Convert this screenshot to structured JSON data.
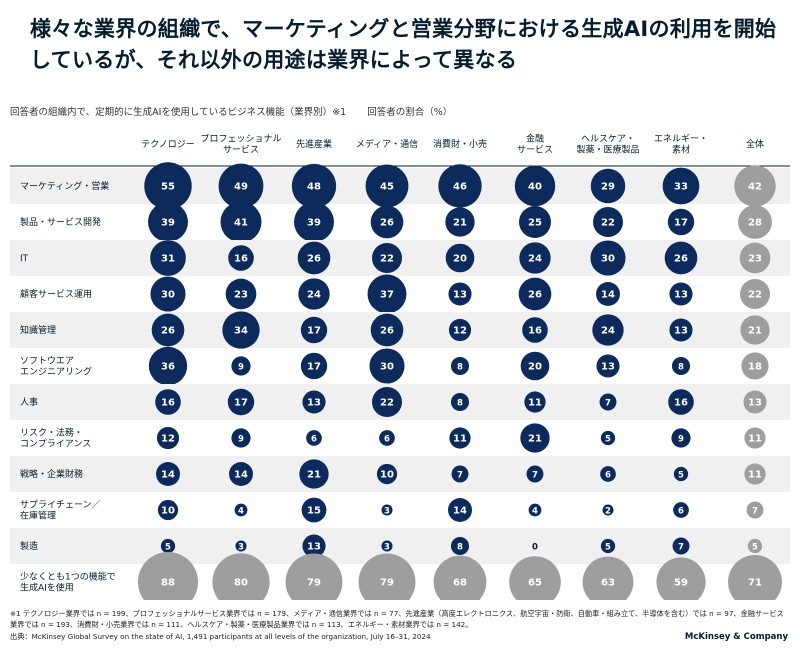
{
  "title": "様々な業界の組織で、マーケティングと営業分野における生成AIの利用を開始しているが、それ以外の用途は業界によって異なる",
  "subtitle_left": "回答者の組織内で、定期的に生成AIを使用しているビジネス機能（業界別）※1",
  "subtitle_right": "回答者の割合（%）",
  "footnote": "※1 テクノロジー業界では n = 199、プロフェッショナルサービス業界では n = 179、メディア・通信業界では n = 77、先進産業（高度エレクトロニクス、航空宇宙・防衛、自動車・組み立て、半導体を含む）では n = 97、金融サービス業界では n = 193、消費財・小売業界では n = 111、ヘルスケア・製薬・医療製品業界では n = 113、エネルギー・素材業界では n = 142。",
  "source": "出典：McKinsey Global Survey on the state of AI, 1,491 participants at all levels of the organization, July 16–31, 2024",
  "brand": "McKinsey & Company",
  "colors": {
    "dark": "#0d2a5c",
    "gray": "#9e9e9e",
    "stripe": "#f0f0f0"
  },
  "chart_data": {
    "type": "heatmap",
    "columns": [
      "テクノロジー",
      "プロフェッショナル\nサービス",
      "先進産業",
      "メディア・通信",
      "消費財・小売",
      "金融\nサービス",
      "ヘルスケア・\n製薬・医療製品",
      "エネルギー・\n素材",
      "全体"
    ],
    "rows": [
      "マーケティング・営業",
      "製品・サービス開発",
      "IT",
      "顧客サービス運用",
      "知識管理",
      "ソフトウエア\nエンジニアリング",
      "人事",
      "リスク・法務・\nコンプライアンス",
      "戦略・企業財務",
      "サプライチェーン／\n在庫管理",
      "製造",
      "少なくとも1つの機能で\n生成AIを使用"
    ],
    "values": [
      [
        55,
        49,
        48,
        45,
        46,
        40,
        29,
        33,
        42
      ],
      [
        39,
        41,
        39,
        26,
        21,
        25,
        22,
        17,
        28
      ],
      [
        31,
        16,
        26,
        22,
        20,
        24,
        30,
        26,
        23
      ],
      [
        30,
        23,
        24,
        37,
        13,
        26,
        14,
        13,
        22
      ],
      [
        26,
        34,
        17,
        26,
        12,
        16,
        24,
        13,
        21
      ],
      [
        36,
        9,
        17,
        30,
        8,
        20,
        13,
        8,
        18
      ],
      [
        16,
        17,
        13,
        22,
        8,
        11,
        7,
        16,
        13
      ],
      [
        12,
        9,
        6,
        6,
        11,
        21,
        5,
        9,
        11
      ],
      [
        14,
        14,
        21,
        10,
        7,
        7,
        6,
        5,
        11
      ],
      [
        10,
        4,
        15,
        3,
        14,
        4,
        2,
        6,
        7
      ],
      [
        5,
        3,
        13,
        3,
        8,
        0,
        5,
        7,
        5
      ],
      [
        88,
        80,
        79,
        79,
        68,
        65,
        63,
        59,
        71
      ]
    ]
  }
}
